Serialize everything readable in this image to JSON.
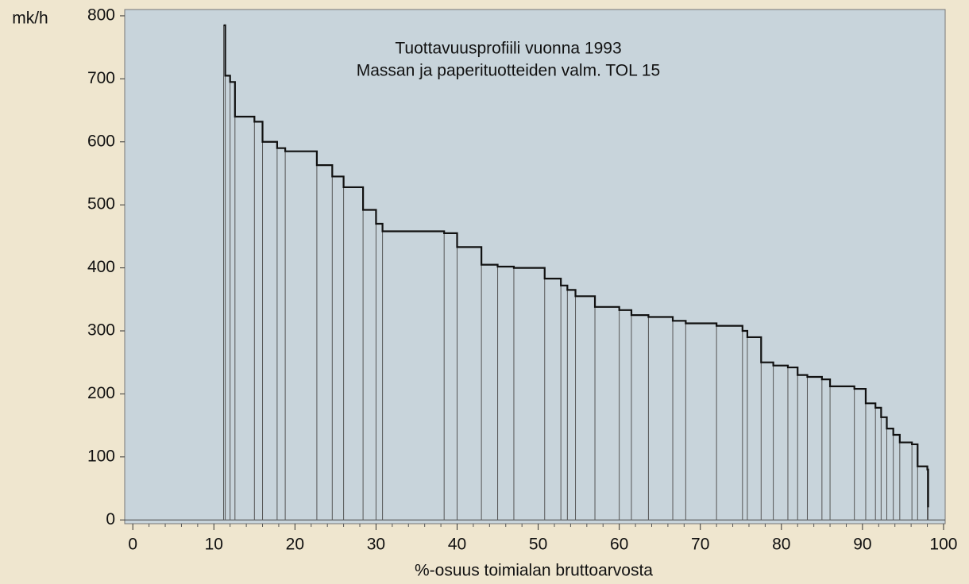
{
  "chart_data": {
    "type": "step",
    "title": "Tuottavuusprofiili vuonna 1993",
    "subtitle": "Massan ja paperituotteiden valm. TOL 15",
    "y_axis_label": "mk/h",
    "x_axis_label": "%-osuus toimialan bruttoarvosta",
    "x": [
      11.2,
      11.4,
      12.0,
      12.6,
      15.0,
      16.0,
      17.8,
      18.8,
      22.7,
      24.6,
      26.0,
      28.4,
      30.0,
      30.8,
      38.4,
      40.0,
      43.0,
      45.0,
      47.0,
      50.8,
      52.8,
      53.6,
      54.6,
      57.0,
      60.0,
      61.5,
      63.6,
      66.6,
      68.2,
      72.0,
      75.2,
      75.8,
      77.5,
      79.0,
      80.8,
      82.0,
      83.2,
      85.0,
      86.0,
      89.0,
      90.4,
      91.6,
      92.3,
      93.0,
      93.8,
      94.6,
      96.1,
      96.8,
      98.0,
      98.1
    ],
    "values": [
      785,
      705,
      695,
      640,
      632,
      600,
      590,
      585,
      563,
      545,
      528,
      492,
      470,
      458,
      455,
      433,
      405,
      402,
      400,
      383,
      372,
      365,
      355,
      338,
      333,
      325,
      322,
      316,
      312,
      308,
      300,
      290,
      250,
      245,
      242,
      230,
      227,
      223,
      212,
      208,
      185,
      178,
      163,
      145,
      135,
      123,
      120,
      85,
      80,
      20
    ],
    "color": "#111111",
    "drop_line_color": "#555555",
    "xlim": [
      -1,
      100.2
    ],
    "xticks": [
      0,
      10,
      20,
      30,
      40,
      50,
      60,
      70,
      80,
      90,
      100
    ],
    "ylim": [
      -6,
      810
    ],
    "yticks": [
      0,
      100,
      200,
      300,
      400,
      500,
      600,
      700,
      800
    ]
  }
}
